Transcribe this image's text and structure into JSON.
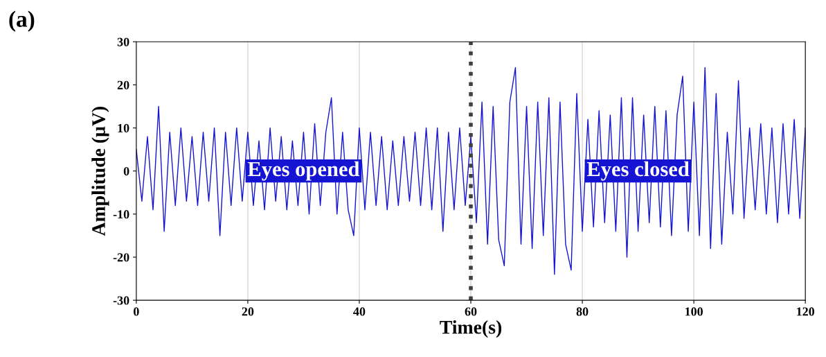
{
  "chart_data": {
    "type": "line",
    "xlabel": "Time(s)",
    "ylabel": "Amplitude (μV)",
    "annotations": [
      "(a)",
      {
        "text": "Eyes opened",
        "x": 30,
        "y": 0
      },
      {
        "text": "Eyes closed",
        "x": 90,
        "y": 0
      }
    ],
    "x": [
      0,
      1,
      2,
      3,
      4,
      5,
      6,
      7,
      8,
      9,
      10,
      11,
      12,
      13,
      14,
      15,
      16,
      17,
      18,
      19,
      20,
      21,
      22,
      23,
      24,
      25,
      26,
      27,
      28,
      29,
      30,
      31,
      32,
      33,
      34,
      35,
      36,
      37,
      38,
      39,
      40,
      41,
      42,
      43,
      44,
      45,
      46,
      47,
      48,
      49,
      50,
      51,
      52,
      53,
      54,
      55,
      56,
      57,
      58,
      59,
      60,
      61,
      62,
      63,
      64,
      65,
      66,
      67,
      68,
      69,
      70,
      71,
      72,
      73,
      74,
      75,
      76,
      77,
      78,
      79,
      80,
      81,
      82,
      83,
      84,
      85,
      86,
      87,
      88,
      89,
      90,
      91,
      92,
      93,
      94,
      95,
      96,
      97,
      98,
      99,
      100,
      101,
      102,
      103,
      104,
      105,
      106,
      107,
      108,
      109,
      110,
      111,
      112,
      113,
      114,
      115,
      116,
      117,
      118,
      119,
      120
    ],
    "series": [
      {
        "color": "#1414d2",
        "values": [
          5,
          -7,
          8,
          -9,
          15,
          -14,
          9,
          -8,
          10,
          -7,
          8,
          -8,
          9,
          -7,
          10,
          -15,
          9,
          -8,
          10,
          -7,
          9,
          -8,
          7,
          -9,
          10,
          -7,
          8,
          -9,
          7,
          -8,
          9,
          -10,
          11,
          -8,
          9,
          17,
          -10,
          9,
          -9,
          -15,
          10,
          -9,
          9,
          -8,
          8,
          -9,
          7,
          -8,
          8,
          -7,
          9,
          -8,
          10,
          -9,
          10,
          -14,
          9,
          -9,
          10,
          -8,
          8,
          -12,
          16,
          -17,
          15,
          -16,
          -22,
          16,
          24,
          -17,
          15,
          -18,
          16,
          -15,
          17,
          -24,
          16,
          -17,
          -23,
          18,
          -14,
          12,
          -13,
          14,
          -12,
          13,
          -14,
          17,
          -20,
          17,
          -14,
          13,
          -12,
          15,
          -13,
          14,
          -15,
          13,
          22,
          -14,
          16,
          -15,
          24,
          -18,
          18,
          -17,
          9,
          -10,
          21,
          -11,
          10,
          -9,
          11,
          -10,
          10,
          -12,
          11,
          -10,
          12,
          -11,
          10
        ]
      }
    ],
    "xlim": [
      0,
      120
    ],
    "xticks": [
      0,
      20,
      40,
      60,
      80,
      100,
      120
    ],
    "ylim": [
      -30,
      30
    ],
    "yticks": [
      -30,
      -20,
      -10,
      0,
      10,
      20,
      30
    ],
    "grid": "x",
    "line_style": "solid",
    "marker": "none",
    "ref_lines": [
      {
        "axis": "x",
        "value": 60,
        "color": "#404040",
        "line_style": "dotted"
      }
    ]
  }
}
